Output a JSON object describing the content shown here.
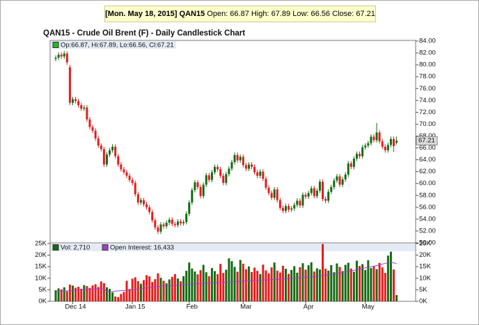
{
  "chart_data": {
    "type": "candlestick",
    "header_date": "[Mon. May 18, 2015]",
    "header_symbol": "QAN15",
    "header_quote": "Open: 66.87 High: 67.89 Low: 66.56 Close: 67.21",
    "title": "QAN15 - Crude Oil Brent (F) - Daily Candlestick Chart",
    "price_legend": "Op:66.87, Hi:67.89, Lo:66.56, Cl:67.21",
    "volume_legend": "Vol: 2,710",
    "oi_legend": "Open Interest: 16,433",
    "up_color": "#136b13",
    "down_color": "#e01e1e",
    "oi_color": "#a040c8",
    "categories": [
      null,
      null,
      null,
      null,
      null,
      null,
      "Dec 14",
      null,
      null,
      null,
      null,
      null,
      null,
      null,
      null,
      null,
      null,
      null,
      null,
      null,
      null,
      null,
      null,
      null,
      null,
      null,
      null,
      "Jan 15",
      null,
      null,
      null,
      null,
      null,
      null,
      null,
      null,
      null,
      null,
      null,
      null,
      null,
      null,
      null,
      null,
      null,
      null,
      null,
      "Feb",
      null,
      null,
      null,
      null,
      null,
      null,
      null,
      null,
      null,
      null,
      null,
      null,
      null,
      null,
      null,
      null,
      null,
      null,
      "Mar",
      null,
      null,
      null,
      null,
      null,
      null,
      null,
      null,
      null,
      null,
      null,
      null,
      null,
      null,
      null,
      null,
      null,
      null,
      null,
      null,
      null,
      "Apr",
      null,
      null,
      null,
      null,
      null,
      null,
      null,
      null,
      null,
      null,
      null,
      null,
      null,
      null,
      null,
      null,
      null,
      null,
      null,
      null,
      "May",
      null,
      null,
      null,
      null,
      null,
      null,
      null,
      null,
      null,
      null,
      null
    ],
    "open": [
      81.0,
      81.2,
      81.7,
      81.4,
      81.9,
      79.6,
      73.6,
      74.2,
      73.9,
      73.2,
      72.6,
      72.8,
      70.8,
      69.5,
      68.9,
      67.6,
      66.4,
      65.8,
      63.2,
      64.9,
      65.6,
      66.2,
      64.6,
      63.2,
      62.4,
      61.9,
      61.3,
      60.6,
      60.1,
      58.2,
      56.8,
      57.2,
      56.5,
      56.0,
      55.2,
      53.8,
      52.6,
      51.9,
      53.1,
      52.8,
      53.4,
      53.9,
      53.2,
      53.0,
      53.6,
      53.3,
      53.5,
      54.9,
      56.8,
      58.9,
      60.2,
      59.4,
      57.9,
      59.8,
      61.4,
      60.6,
      61.9,
      62.8,
      62.4,
      61.3,
      60.1,
      61.6,
      62.5,
      63.6,
      64.8,
      63.9,
      64.5,
      63.1,
      62.5,
      63.2,
      62.8,
      61.9,
      61.3,
      62.0,
      60.8,
      59.3,
      58.4,
      57.6,
      59.0,
      57.2,
      55.9,
      55.4,
      56.2,
      55.6,
      55.8,
      56.4,
      57.1,
      56.3,
      58.1,
      57.8,
      58.4,
      59.2,
      57.9,
      58.8,
      60.3,
      57.4,
      57.1,
      58.6,
      59.4,
      60.5,
      61.2,
      59.8,
      60.7,
      61.5,
      63.4,
      62.8,
      64.2,
      65.0,
      64.6,
      66.1,
      66.4,
      66.8,
      67.9,
      67.3,
      68.6,
      67.1,
      66.2,
      65.6,
      66.5,
      67.5,
      66.87
    ],
    "high": [
      81.6,
      82.1,
      82.1,
      82.3,
      82.3,
      80.0,
      74.6,
      74.6,
      74.3,
      73.6,
      73.2,
      73.2,
      71.2,
      69.9,
      69.3,
      68.0,
      66.8,
      66.2,
      65.3,
      66.0,
      66.6,
      66.6,
      65.0,
      63.6,
      62.8,
      62.3,
      61.7,
      61.0,
      60.5,
      58.6,
      57.6,
      57.6,
      56.9,
      56.4,
      55.6,
      54.2,
      53.0,
      53.5,
      53.5,
      53.8,
      54.3,
      54.3,
      53.6,
      54.0,
      54.0,
      53.9,
      55.3,
      57.2,
      59.3,
      60.6,
      60.6,
      59.8,
      60.2,
      61.8,
      61.8,
      62.3,
      63.2,
      63.2,
      62.8,
      61.7,
      62.0,
      62.9,
      64.0,
      65.2,
      65.2,
      64.9,
      64.9,
      63.5,
      63.6,
      63.6,
      63.2,
      62.3,
      62.4,
      62.4,
      61.2,
      59.7,
      58.8,
      59.4,
      59.4,
      57.6,
      56.3,
      56.6,
      56.6,
      56.2,
      56.8,
      57.5,
      57.5,
      58.5,
      58.5,
      58.8,
      59.6,
      59.6,
      59.2,
      60.7,
      60.7,
      57.8,
      59.0,
      59.8,
      60.9,
      61.6,
      61.6,
      61.1,
      61.9,
      63.8,
      63.8,
      64.6,
      65.4,
      65.4,
      66.5,
      66.8,
      67.2,
      68.3,
      68.3,
      70.2,
      69.0,
      67.5,
      66.6,
      66.9,
      67.9,
      67.9,
      67.89
    ],
    "low": [
      80.6,
      80.8,
      81.0,
      81.0,
      80.0,
      73.2,
      73.2,
      73.5,
      72.8,
      72.2,
      72.2,
      70.4,
      69.1,
      68.5,
      67.2,
      66.0,
      65.4,
      62.8,
      62.8,
      64.5,
      65.2,
      64.2,
      62.8,
      62.0,
      61.5,
      60.9,
      60.2,
      59.7,
      57.8,
      56.4,
      56.4,
      56.1,
      55.6,
      54.8,
      53.4,
      52.2,
      51.5,
      51.5,
      52.4,
      52.4,
      53.0,
      52.8,
      52.6,
      52.6,
      52.9,
      52.9,
      53.1,
      54.5,
      56.4,
      58.5,
      59.0,
      57.5,
      57.5,
      59.4,
      60.2,
      60.2,
      61.5,
      62.0,
      60.9,
      59.7,
      59.7,
      61.2,
      62.1,
      63.2,
      63.5,
      63.5,
      62.7,
      62.1,
      62.1,
      62.4,
      61.5,
      60.9,
      60.9,
      60.4,
      58.9,
      58.0,
      57.2,
      57.2,
      56.8,
      55.5,
      55.0,
      55.0,
      55.2,
      55.2,
      55.4,
      56.0,
      55.9,
      55.9,
      57.4,
      57.4,
      58.0,
      57.5,
      57.5,
      58.4,
      57.0,
      56.7,
      56.7,
      58.2,
      59.0,
      60.1,
      59.4,
      59.4,
      60.3,
      61.1,
      62.4,
      62.4,
      63.8,
      64.2,
      64.2,
      65.7,
      66.0,
      66.4,
      66.9,
      66.9,
      66.7,
      65.8,
      65.2,
      65.2,
      66.1,
      65.3,
      66.56
    ],
    "close": [
      81.2,
      81.7,
      81.4,
      81.9,
      80.4,
      73.6,
      74.2,
      73.9,
      73.2,
      72.6,
      72.8,
      70.8,
      69.5,
      68.9,
      67.6,
      66.4,
      65.8,
      63.2,
      64.9,
      65.6,
      66.2,
      64.6,
      63.2,
      62.4,
      61.9,
      61.3,
      60.6,
      60.1,
      58.2,
      56.8,
      57.2,
      56.5,
      56.0,
      55.2,
      53.8,
      52.6,
      51.9,
      53.1,
      52.8,
      53.4,
      53.9,
      53.2,
      53.0,
      53.6,
      53.3,
      53.5,
      54.9,
      56.8,
      58.9,
      60.2,
      59.4,
      57.9,
      59.8,
      61.4,
      60.6,
      61.9,
      62.8,
      62.4,
      61.3,
      60.1,
      61.6,
      62.5,
      63.6,
      64.8,
      63.9,
      64.5,
      63.1,
      62.5,
      63.2,
      62.8,
      61.9,
      61.3,
      62.0,
      60.8,
      59.3,
      58.4,
      57.6,
      59.0,
      57.2,
      55.9,
      55.4,
      56.2,
      55.6,
      55.8,
      56.4,
      57.1,
      56.3,
      58.1,
      57.8,
      58.4,
      59.2,
      57.9,
      58.8,
      60.3,
      57.4,
      57.1,
      58.6,
      59.4,
      60.5,
      61.2,
      59.8,
      60.7,
      61.5,
      63.4,
      62.8,
      64.2,
      65.0,
      64.6,
      66.1,
      66.4,
      66.8,
      67.9,
      67.3,
      68.6,
      67.1,
      66.2,
      65.6,
      66.5,
      67.5,
      66.3,
      67.21
    ],
    "volume": [
      4800,
      5600,
      5200,
      6100,
      4300,
      7200,
      6800,
      5900,
      6300,
      5400,
      7000,
      6600,
      5800,
      6900,
      7400,
      6200,
      8600,
      7900,
      6100,
      5400,
      3900,
      2100,
      1800,
      3200,
      4100,
      8900,
      5300,
      9800,
      10400,
      8700,
      7600,
      9200,
      11300,
      10800,
      8400,
      9600,
      12100,
      10200,
      8900,
      7800,
      9500,
      10600,
      11800,
      9900,
      8700,
      10900,
      13200,
      16800,
      14200,
      12900,
      11700,
      13500,
      15800,
      12600,
      10900,
      14400,
      13100,
      11800,
      16200,
      12300,
      13700,
      18600,
      17400,
      14900,
      12800,
      17900,
      16300,
      13900,
      15100,
      12700,
      14600,
      13200,
      11800,
      15900,
      13400,
      12100,
      14700,
      16800,
      13300,
      12500,
      15400,
      14100,
      11900,
      13600,
      15200,
      12400,
      14800,
      16500,
      13700,
      15600,
      16900,
      12900,
      14300,
      13800,
      24800,
      14100,
      13300,
      15700,
      12600,
      16400,
      14900,
      13100,
      15800,
      16700,
      14200,
      12800,
      17600,
      15300,
      16100,
      13600,
      17800,
      14400,
      15200,
      13900,
      16600,
      14700,
      12300,
      19800,
      21500,
      13800,
      2710
    ],
    "open_interest": [
      4200,
      4300,
      4300,
      4400,
      4500,
      4600,
      4700,
      4800,
      4900,
      5000,
      5100,
      5200,
      5300,
      5300,
      5400,
      5500,
      5500,
      5400,
      4200,
      4300,
      4300,
      4400,
      4500,
      4600,
      4700,
      4800,
      4900,
      5000,
      5200,
      5400,
      5500,
      5700,
      5800,
      6000,
      6100,
      6300,
      6400,
      6500,
      6600,
      6700,
      6800,
      6900,
      7000,
      7100,
      7100,
      7200,
      7300,
      7400,
      7500,
      7600,
      7600,
      7700,
      7800,
      7900,
      7900,
      8000,
      8100,
      8100,
      8200,
      8300,
      8300,
      8400,
      8500,
      8500,
      8600,
      8700,
      8700,
      8800,
      8900,
      8900,
      9000,
      9100,
      9100,
      9200,
      9300,
      9300,
      9400,
      9500,
      9600,
      9600,
      9700,
      9800,
      9900,
      9900,
      10000,
      10100,
      10200,
      10300,
      10400,
      10500,
      10600,
      10700,
      10900,
      11000,
      11200,
      11300,
      11500,
      11700,
      11900,
      12100,
      12300,
      12500,
      12700,
      13000,
      13200,
      13400,
      13700,
      14000,
      14200,
      14500,
      14700,
      15000,
      15200,
      15500,
      15800,
      16100,
      16400,
      16700,
      16900,
      16600,
      16433
    ],
    "ylim": [
      50,
      84
    ],
    "yticks": [
      {
        "value": 50,
        "label": "50.00"
      },
      {
        "value": 52,
        "label": "52.00"
      },
      {
        "value": 54,
        "label": "54.00"
      },
      {
        "value": 56,
        "label": "56.00"
      },
      {
        "value": 58,
        "label": "58.00"
      },
      {
        "value": 60,
        "label": "60.00"
      },
      {
        "value": 62,
        "label": "62.00"
      },
      {
        "value": 64,
        "label": "64.00"
      },
      {
        "value": 66,
        "label": "66.00"
      },
      {
        "value": 68,
        "label": "68.00"
      },
      {
        "value": 70,
        "label": "70.00"
      },
      {
        "value": 72,
        "label": "72.00"
      },
      {
        "value": 74,
        "label": "74.00"
      },
      {
        "value": 76,
        "label": "76.00"
      },
      {
        "value": 78,
        "label": "78.00"
      },
      {
        "value": 80,
        "label": "80.00"
      },
      {
        "value": 82,
        "label": "82.00"
      },
      {
        "value": 84,
        "label": "84.00"
      }
    ],
    "y2lim": [
      0,
      25000
    ],
    "y2ticks": [
      {
        "value": 0,
        "label": "0K"
      },
      {
        "value": 5000,
        "label": "5K"
      },
      {
        "value": 10000,
        "label": "10K"
      },
      {
        "value": 15000,
        "label": "15K"
      },
      {
        "value": 20000,
        "label": "20K"
      },
      {
        "value": 25000,
        "label": "25K"
      }
    ]
  }
}
